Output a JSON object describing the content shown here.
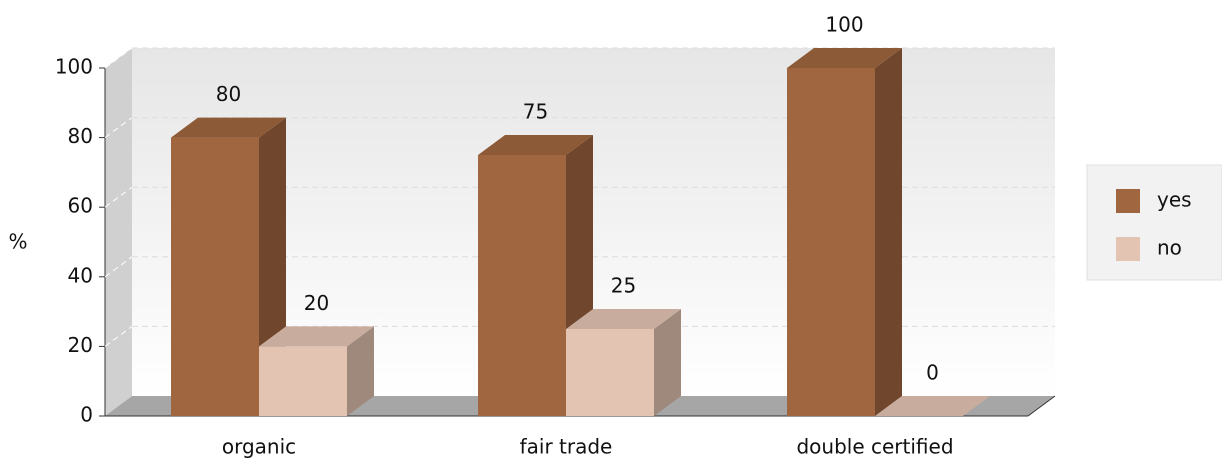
{
  "chart_data": {
    "type": "bar",
    "categories": [
      "organic",
      "fair trade",
      "double certified"
    ],
    "series": [
      {
        "name": "yes",
        "color": "#a0663f",
        "values": [
          80,
          75,
          100
        ]
      },
      {
        "name": "no",
        "color": "#e3c4b2",
        "values": [
          20,
          25,
          0
        ]
      }
    ],
    "ylabel": "%",
    "ylim": [
      0,
      100
    ],
    "yticks": [
      0,
      20,
      40,
      60,
      80,
      100
    ],
    "grid": true,
    "legend": "right"
  }
}
